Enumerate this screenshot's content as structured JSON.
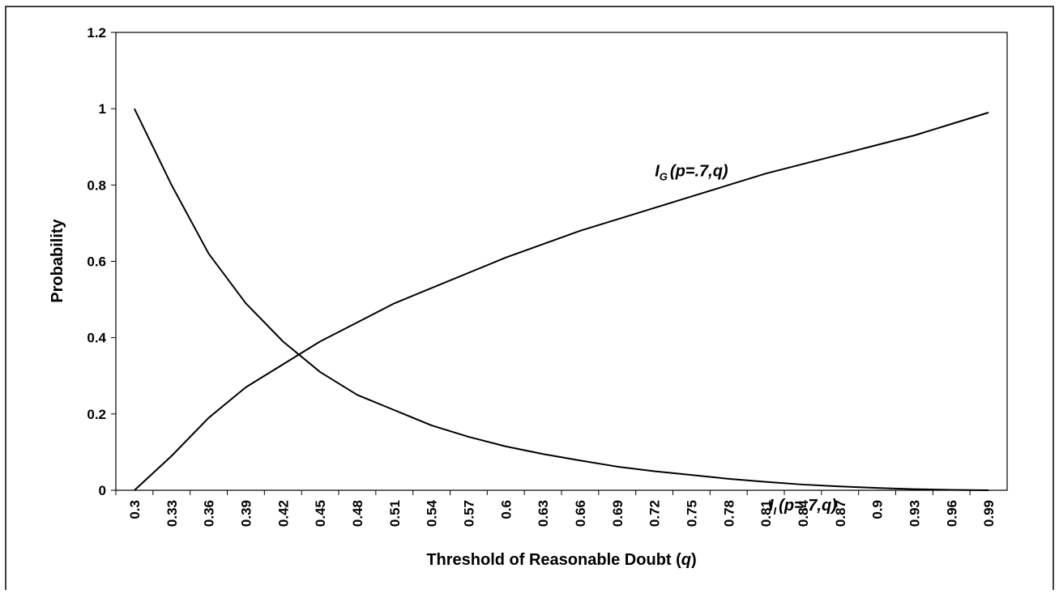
{
  "chart_data": {
    "type": "line",
    "xlabel": [
      "Threshold of Reasonable Doubt (",
      "q",
      ")"
    ],
    "ylabel": "Probability",
    "categories": [
      0.3,
      0.33,
      0.36,
      0.39,
      0.42,
      0.45,
      0.48,
      0.51,
      0.54,
      0.57,
      0.6,
      0.63,
      0.66,
      0.69,
      0.72,
      0.75,
      0.78,
      0.81,
      0.84,
      0.87,
      0.9,
      0.93,
      0.96,
      0.99
    ],
    "ylim": [
      0,
      1.2
    ],
    "yticks": [
      0,
      0.2,
      0.4,
      0.6,
      0.8,
      1,
      1.2
    ],
    "grid": false,
    "series": [
      {
        "color": "#000000",
        "label": {
          "main": "I",
          "sub": "G",
          "args": "(p=.7,q)"
        },
        "label_at": 15,
        "values": [
          0,
          0.09,
          0.19,
          0.27,
          0.33,
          0.39,
          0.44,
          0.49,
          0.53,
          0.57,
          0.61,
          0.645,
          0.68,
          0.71,
          0.74,
          0.77,
          0.8,
          0.83,
          0.855,
          0.88,
          0.905,
          0.93,
          0.96,
          0.99
        ]
      },
      {
        "color": "#000000",
        "label": {
          "main": "I",
          "sub": "I",
          "args": "(p=.7,q)"
        },
        "label_at": 18,
        "values": [
          1,
          0.8,
          0.62,
          0.49,
          0.39,
          0.31,
          0.25,
          0.21,
          0.17,
          0.14,
          0.115,
          0.095,
          0.078,
          0.062,
          0.05,
          0.04,
          0.03,
          0.022,
          0.015,
          0.01,
          0.006,
          0.003,
          0.001,
          0
        ]
      }
    ]
  }
}
